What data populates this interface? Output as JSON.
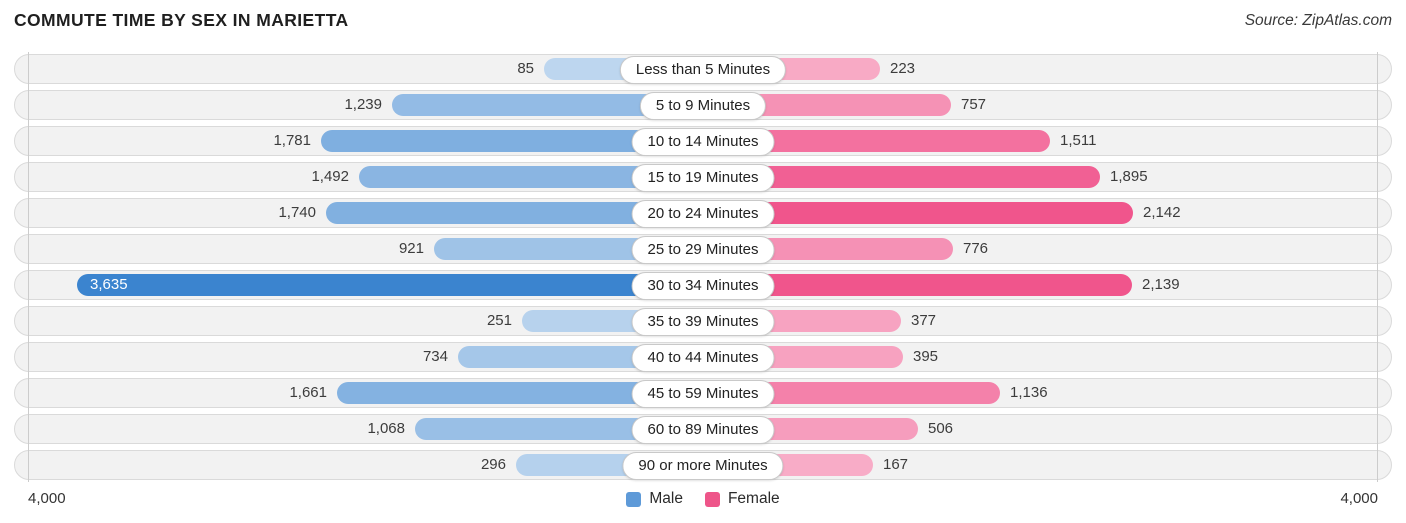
{
  "title": "COMMUTE TIME BY SEX IN MARIETTA",
  "source": "Source: ZipAtlas.com",
  "axis": {
    "left": "4,000",
    "right": "4,000",
    "max": 4000
  },
  "legend": {
    "male": "Male",
    "female": "Female"
  },
  "colors": {
    "male_base": "#2e7ccc",
    "female_base": "#e90355",
    "male_legend": "#5e9ad8",
    "female_legend": "#ee5589",
    "row_bg": "#f2f2f2",
    "row_border": "#dadada",
    "grid": "#cccccc"
  },
  "layout_hints": {
    "male_label_inside_row": 6,
    "legend_position": "bottom-center",
    "grid": "edge lines at ±4,000"
  },
  "chart_data": {
    "type": "bar",
    "orientation": "bidirectional-horizontal",
    "title": "COMMUTE TIME BY SEX IN MARIETTA",
    "xlabel": "",
    "ylabel": "Commute time bracket",
    "xlim": [
      -4000,
      4000
    ],
    "categories": [
      "Less than 5 Minutes",
      "5 to 9 Minutes",
      "10 to 14 Minutes",
      "15 to 19 Minutes",
      "20 to 24 Minutes",
      "25 to 29 Minutes",
      "30 to 34 Minutes",
      "35 to 39 Minutes",
      "40 to 44 Minutes",
      "45 to 59 Minutes",
      "60 to 89 Minutes",
      "90 or more Minutes"
    ],
    "series": [
      {
        "name": "Male",
        "values": [
          85,
          1239,
          1781,
          1492,
          1740,
          921,
          3635,
          251,
          734,
          1661,
          1068,
          296
        ]
      },
      {
        "name": "Female",
        "values": [
          223,
          757,
          1511,
          1895,
          2142,
          776,
          2139,
          377,
          395,
          1136,
          506,
          167
        ]
      }
    ],
    "value_labels": {
      "male": [
        "85",
        "1,239",
        "1,781",
        "1,492",
        "1,740",
        "921",
        "3,635",
        "251",
        "734",
        "1,661",
        "1,068",
        "296"
      ],
      "female": [
        "223",
        "757",
        "1,511",
        "1,895",
        "2,142",
        "776",
        "2,139",
        "377",
        "395",
        "1,136",
        "506",
        "167"
      ]
    }
  }
}
